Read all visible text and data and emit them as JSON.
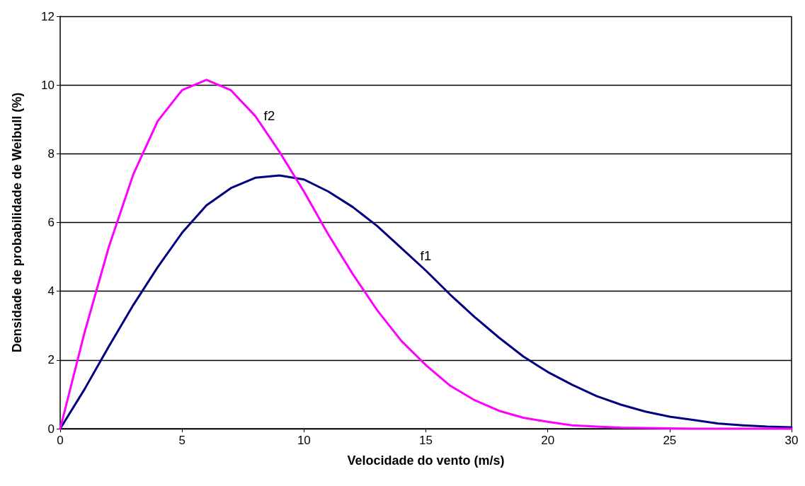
{
  "chart_data": {
    "type": "line",
    "xlabel": "Velocidade do vento (m/s)",
    "ylabel": "Densidade de probabilidade de Weibull (%)",
    "x": [
      0,
      1,
      2,
      3,
      4,
      5,
      6,
      7,
      8,
      9,
      10,
      11,
      12,
      13,
      14,
      15,
      16,
      17,
      18,
      19,
      20,
      21,
      22,
      23,
      24,
      25,
      26,
      27,
      28,
      29,
      30
    ],
    "series": [
      {
        "name": "f1",
        "color": "#000080",
        "values": [
          0,
          1.15,
          2.4,
          3.6,
          4.7,
          5.7,
          6.5,
          7.0,
          7.3,
          7.37,
          7.25,
          6.9,
          6.45,
          5.9,
          5.25,
          4.6,
          3.9,
          3.25,
          2.65,
          2.1,
          1.65,
          1.28,
          0.95,
          0.7,
          0.5,
          0.35,
          0.25,
          0.15,
          0.1,
          0.06,
          0.04
        ]
      },
      {
        "name": "f2",
        "color": "#ff00ff",
        "values": [
          0,
          2.8,
          5.3,
          7.4,
          8.95,
          9.85,
          10.15,
          9.85,
          9.1,
          8.05,
          6.9,
          5.65,
          4.5,
          3.45,
          2.55,
          1.85,
          1.25,
          0.83,
          0.52,
          0.32,
          0.2,
          0.1,
          0.06,
          0.03,
          0.02,
          0.01,
          0,
          0,
          0,
          0,
          0
        ]
      }
    ],
    "xlim": [
      0,
      30
    ],
    "xticks": [
      0,
      5,
      10,
      15,
      20,
      25,
      30
    ],
    "ylim": [
      0,
      12
    ],
    "yticks": [
      0,
      2,
      4,
      6,
      8,
      10,
      12
    ],
    "grid": "y",
    "legend": false,
    "marker": "none",
    "line_style": "solid"
  }
}
